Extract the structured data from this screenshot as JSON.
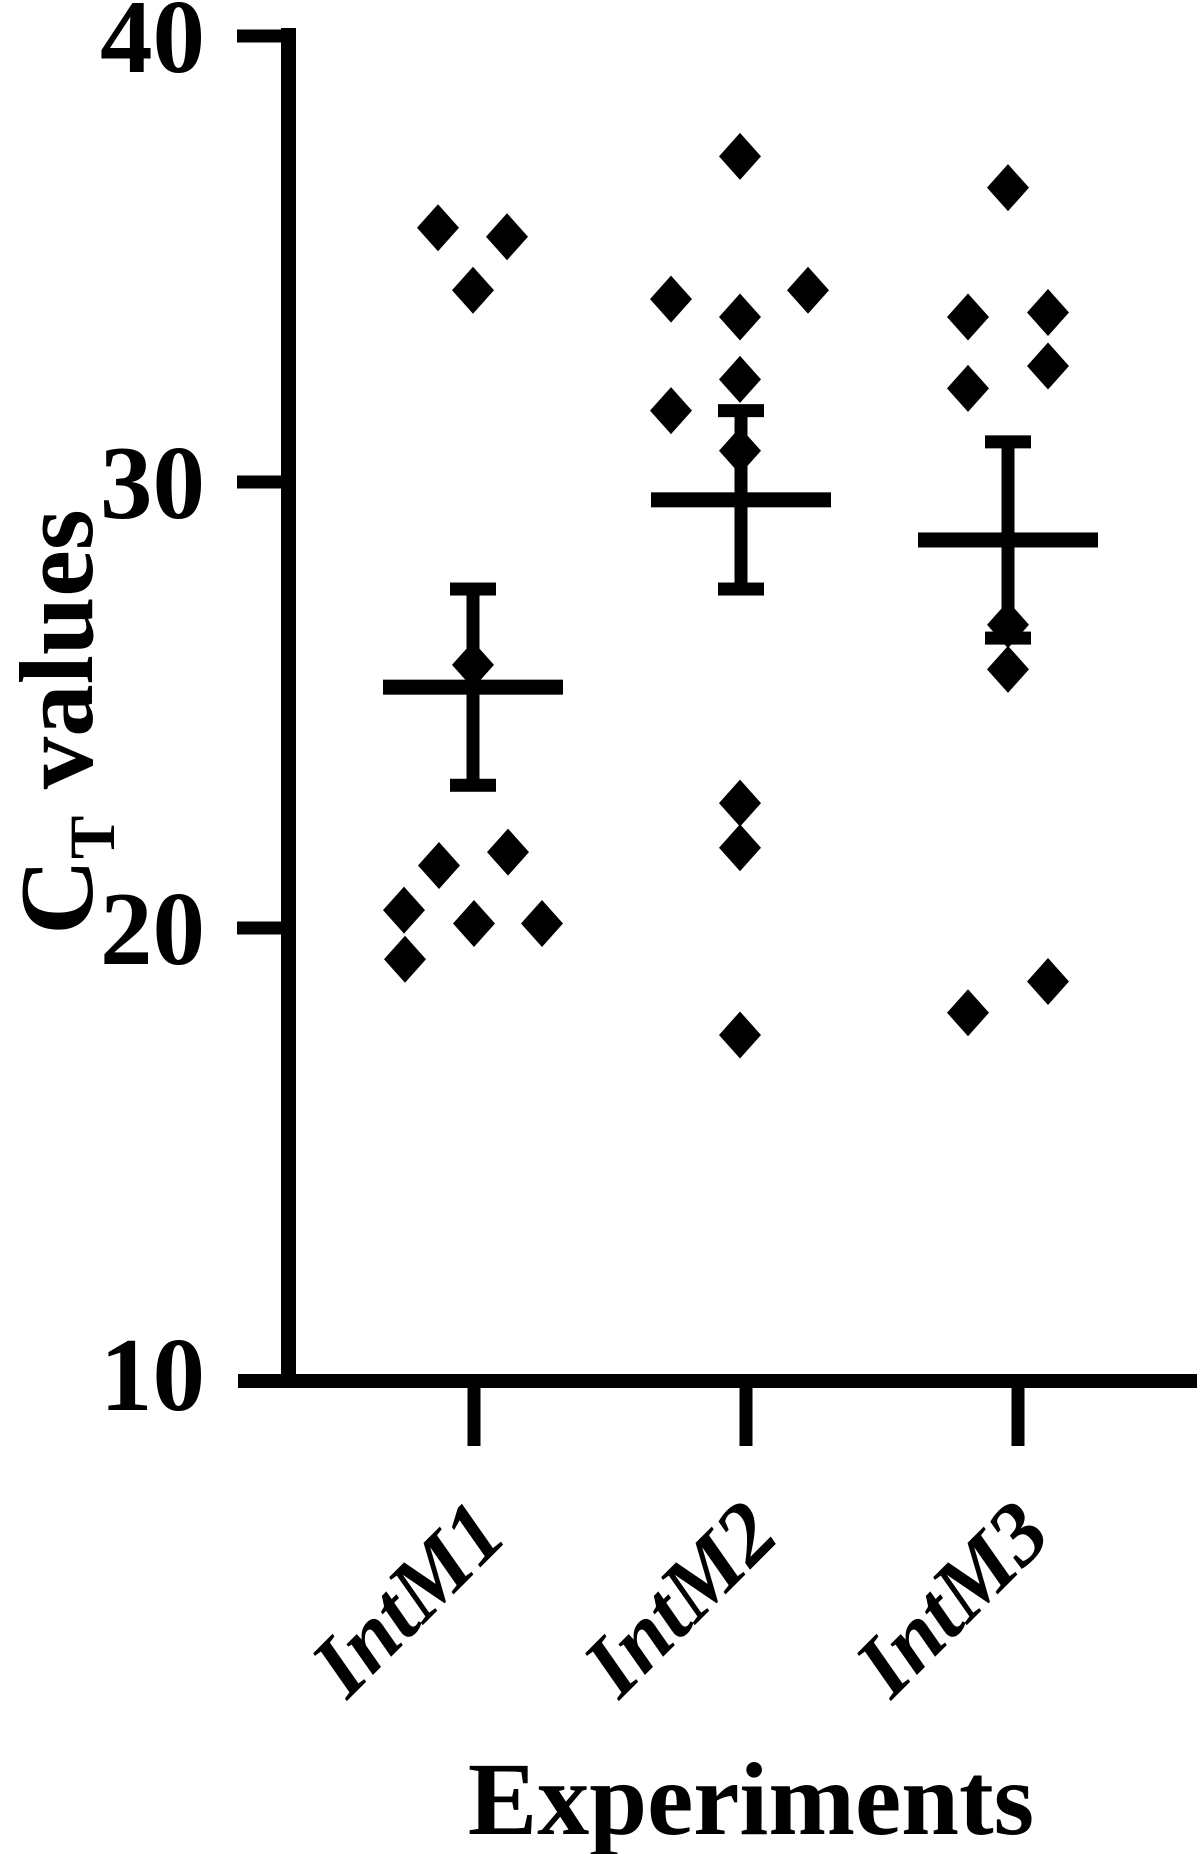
{
  "figure": {
    "background_color": "#ffffff",
    "foreground_color": "#000000"
  },
  "y_axis": {
    "label_main": "C",
    "label_sub": "T",
    "label_rest": " values",
    "label_full": "CT values",
    "tick_labels": [
      "40",
      "30",
      "20",
      "10"
    ],
    "tick_values": [
      40,
      30,
      20,
      10
    ],
    "min": 10,
    "max": 40
  },
  "x_axis": {
    "label": "Experiments",
    "categories": [
      "IntM1",
      "IntM2",
      "IntM3"
    ]
  },
  "chart_data": {
    "type": "scatter",
    "title": "",
    "xlabel": "Experiments",
    "ylabel": "CT values",
    "ylim": [
      10,
      40
    ],
    "yticks": [
      10,
      20,
      30,
      40
    ],
    "categories": [
      "IntM1",
      "IntM2",
      "IntM3"
    ],
    "marker": "diamond",
    "marker_color": "#000000",
    "error_bars": "mean ± SEM",
    "grid": false,
    "legend": "none",
    "series": [
      {
        "name": "IntM1",
        "values": [
          35.7,
          35.5,
          34.3,
          25.9,
          21.4,
          21.7,
          20.4,
          20.1,
          20.1,
          19.3
        ],
        "mean": 25.4,
        "sem": 2.2,
        "err_dx": -1,
        "points": [
          {
            "v": 35.7,
            "dx": -36
          },
          {
            "v": 35.5,
            "dx": 33
          },
          {
            "v": 34.3,
            "dx": -1
          },
          {
            "v": 25.9,
            "dx": -1
          },
          {
            "v": 21.4,
            "dx": -35
          },
          {
            "v": 21.7,
            "dx": 34
          },
          {
            "v": 20.4,
            "dx": -70
          },
          {
            "v": 20.1,
            "dx": 0
          },
          {
            "v": 20.1,
            "dx": 68
          },
          {
            "v": 19.3,
            "dx": -69
          }
        ]
      },
      {
        "name": "IntM2",
        "values": [
          37.3,
          34.3,
          34.1,
          33.7,
          32.3,
          31.6,
          30.7,
          22.8,
          21.8,
          17.6
        ],
        "mean": 29.6,
        "sem": 2.0,
        "err_dx": -5,
        "points": [
          {
            "v": 37.3,
            "dx": -6
          },
          {
            "v": 34.3,
            "dx": 62
          },
          {
            "v": 34.1,
            "dx": -75
          },
          {
            "v": 33.7,
            "dx": -6
          },
          {
            "v": 32.3,
            "dx": -6
          },
          {
            "v": 31.6,
            "dx": -75
          },
          {
            "v": 30.7,
            "dx": -6
          },
          {
            "v": 22.8,
            "dx": -6
          },
          {
            "v": 21.8,
            "dx": -6
          },
          {
            "v": 17.6,
            "dx": -6
          }
        ]
      },
      {
        "name": "IntM3",
        "values": [
          36.6,
          33.8,
          33.7,
          32.6,
          32.1,
          26.8,
          25.8,
          18.8,
          18.1
        ],
        "mean": 28.7,
        "sem": 2.2,
        "err_dx": -10,
        "points": [
          {
            "v": 36.6,
            "dx": -10
          },
          {
            "v": 33.8,
            "dx": 30
          },
          {
            "v": 33.7,
            "dx": -50
          },
          {
            "v": 32.6,
            "dx": 30
          },
          {
            "v": 32.1,
            "dx": -50
          },
          {
            "v": 26.8,
            "dx": -10
          },
          {
            "v": 25.8,
            "dx": -10
          },
          {
            "v": 18.8,
            "dx": 30
          },
          {
            "v": 18.1,
            "dx": -50
          }
        ]
      }
    ]
  }
}
